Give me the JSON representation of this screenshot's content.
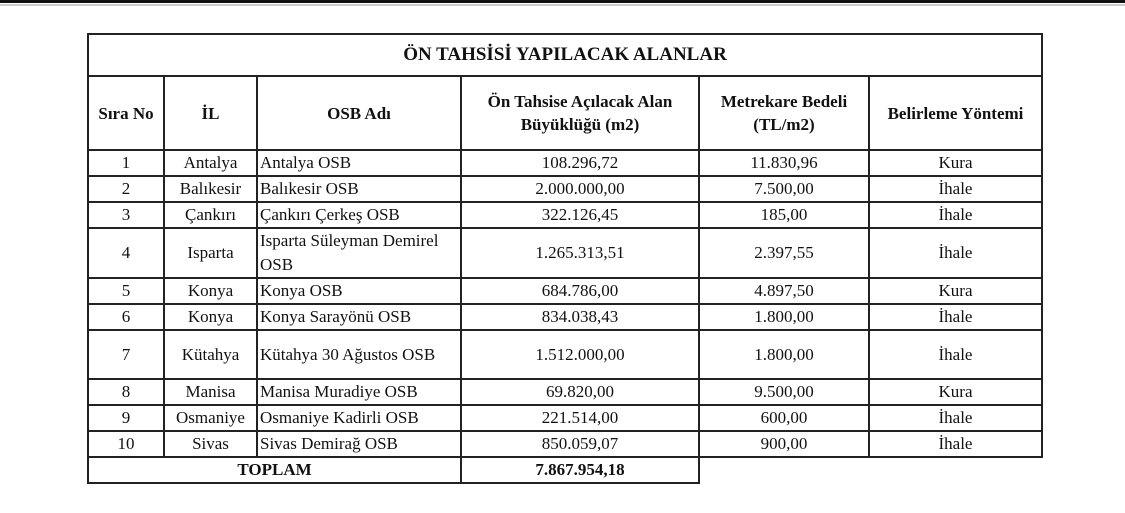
{
  "title": "ÖN TAHSİSİ YAPILACAK ALANLAR",
  "headers": [
    "Sıra No",
    "İL",
    "OSB Adı",
    "Ön Tahsise Açılacak Alan Büyüklüğü (m2)",
    "Metrekare Bedeli (TL/m2)",
    "Belirleme Yöntemi"
  ],
  "rows": [
    {
      "no": "1",
      "il": "Antalya",
      "osb": "Antalya OSB",
      "alan": "108.296,72",
      "bedel": "11.830,96",
      "yontem": "Kura"
    },
    {
      "no": "2",
      "il": "Balıkesir",
      "osb": "Balıkesir OSB",
      "alan": "2.000.000,00",
      "bedel": "7.500,00",
      "yontem": "İhale"
    },
    {
      "no": "3",
      "il": "Çankırı",
      "osb": "Çankırı Çerkeş OSB",
      "alan": "322.126,45",
      "bedel": "185,00",
      "yontem": "İhale"
    },
    {
      "no": "4",
      "il": "Isparta",
      "osb": "Isparta Süleyman Demirel OSB",
      "alan": "1.265.313,51",
      "bedel": "2.397,55",
      "yontem": "İhale"
    },
    {
      "no": "5",
      "il": "Konya",
      "osb": "Konya OSB",
      "alan": "684.786,00",
      "bedel": "4.897,50",
      "yontem": "Kura"
    },
    {
      "no": "6",
      "il": "Konya",
      "osb": "Konya Sarayönü OSB",
      "alan": "834.038,43",
      "bedel": "1.800,00",
      "yontem": "İhale"
    },
    {
      "no": "7",
      "il": "Kütahya",
      "osb": "Kütahya 30 Ağustos OSB",
      "alan": "1.512.000,00",
      "bedel": "1.800,00",
      "yontem": "İhale"
    },
    {
      "no": "8",
      "il": "Manisa",
      "osb": "Manisa Muradiye OSB",
      "alan": "69.820,00",
      "bedel": "9.500,00",
      "yontem": "Kura"
    },
    {
      "no": "9",
      "il": "Osmaniye",
      "osb": "Osmaniye Kadirli OSB",
      "alan": "221.514,00",
      "bedel": "600,00",
      "yontem": "İhale"
    },
    {
      "no": "10",
      "il": "Sivas",
      "osb": "Sivas Demirağ OSB",
      "alan": "850.059,07",
      "bedel": "900,00",
      "yontem": "İhale"
    }
  ],
  "total": {
    "label": "TOPLAM",
    "value": "7.867.954,18"
  }
}
